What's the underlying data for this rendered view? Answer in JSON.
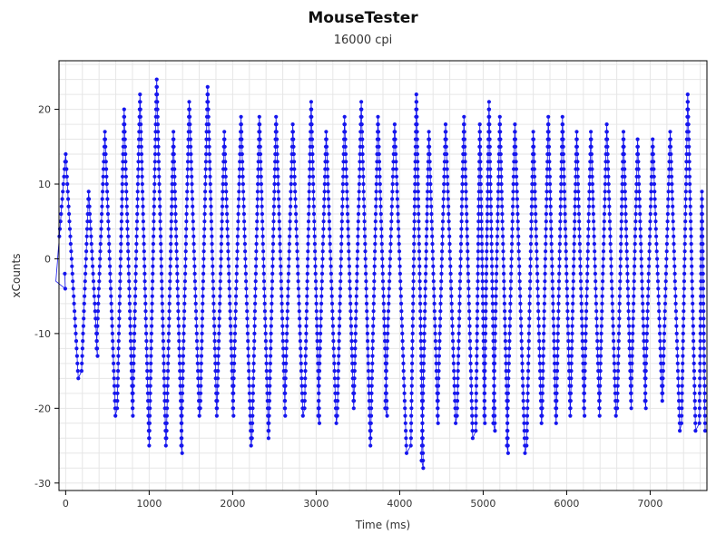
{
  "chart_data": {
    "type": "scatter",
    "title": "MouseTester",
    "subtitle": "16000 cpi",
    "xlabel": "Time (ms)",
    "ylabel": "xCounts",
    "xlim": [
      -80,
      7680
    ],
    "ylim": [
      -31,
      26.5
    ],
    "xticks": [
      "0",
      "1000",
      "2000",
      "3000",
      "4000",
      "5000",
      "6000",
      "7000"
    ],
    "xtick_values": [
      0,
      1000,
      2000,
      3000,
      4000,
      5000,
      6000,
      7000
    ],
    "yticks": [
      "20",
      "10",
      "0",
      "-10",
      "-20",
      "-30"
    ],
    "ytick_values": [
      20,
      10,
      0,
      -10,
      -20,
      -30
    ],
    "grid": true,
    "line_connected": true,
    "colors": {
      "series": "#1515ee",
      "axis": "#000000",
      "grid": "#e6e6e6",
      "text": "#333333"
    },
    "series": [
      {
        "sampling": "oscillation cycles; each cycle is a chain of samples every ~2 ms from trough to peak and back",
        "cycles": [
          {
            "t": 0,
            "peak": 14,
            "trough": -16
          },
          {
            "t": 275,
            "peak": 9,
            "trough": -13
          },
          {
            "t": 470,
            "peak": 17,
            "trough": -21
          },
          {
            "t": 700,
            "peak": 20,
            "trough": -21
          },
          {
            "t": 890,
            "peak": 22,
            "trough": -25
          },
          {
            "t": 1090,
            "peak": 24,
            "trough": -25
          },
          {
            "t": 1290,
            "peak": 17,
            "trough": -26
          },
          {
            "t": 1480,
            "peak": 21,
            "trough": -21
          },
          {
            "t": 1700,
            "peak": 23,
            "trough": -21
          },
          {
            "t": 1900,
            "peak": 17,
            "trough": -21
          },
          {
            "t": 2100,
            "peak": 19,
            "trough": -25
          },
          {
            "t": 2320,
            "peak": 19,
            "trough": -24
          },
          {
            "t": 2520,
            "peak": 19,
            "trough": -21
          },
          {
            "t": 2720,
            "peak": 18,
            "trough": -21
          },
          {
            "t": 2940,
            "peak": 21,
            "trough": -22
          },
          {
            "t": 3120,
            "peak": 17,
            "trough": -22
          },
          {
            "t": 3340,
            "peak": 19,
            "trough": -20
          },
          {
            "t": 3540,
            "peak": 21,
            "trough": -25
          },
          {
            "t": 3740,
            "peak": 19,
            "trough": -21
          },
          {
            "t": 3940,
            "peak": 18,
            "trough": -26
          },
          {
            "t": 4200,
            "peak": 22,
            "trough": -28
          },
          {
            "t": 4350,
            "peak": 17,
            "trough": -22
          },
          {
            "t": 4550,
            "peak": 18,
            "trough": -22
          },
          {
            "t": 4770,
            "peak": 19,
            "trough": -24
          },
          {
            "t": 4960,
            "peak": 18,
            "trough": -22
          },
          {
            "t": 5070,
            "peak": 21,
            "trough": -23
          },
          {
            "t": 5200,
            "peak": 19,
            "trough": -26
          },
          {
            "t": 5380,
            "peak": 18,
            "trough": -26
          },
          {
            "t": 5600,
            "peak": 17,
            "trough": -22
          },
          {
            "t": 5780,
            "peak": 19,
            "trough": -22
          },
          {
            "t": 5950,
            "peak": 19,
            "trough": -21
          },
          {
            "t": 6120,
            "peak": 17,
            "trough": -21
          },
          {
            "t": 6290,
            "peak": 17,
            "trough": -21
          },
          {
            "t": 6480,
            "peak": 18,
            "trough": -21
          },
          {
            "t": 6680,
            "peak": 17,
            "trough": -20
          },
          {
            "t": 6850,
            "peak": 16,
            "trough": -20
          },
          {
            "t": 7030,
            "peak": 16,
            "trough": -19
          },
          {
            "t": 7240,
            "peak": 17,
            "trough": -23
          },
          {
            "t": 7450,
            "peak": 22,
            "trough": -23
          },
          {
            "t": 7620,
            "peak": 9,
            "trough": -23
          }
        ]
      }
    ]
  }
}
